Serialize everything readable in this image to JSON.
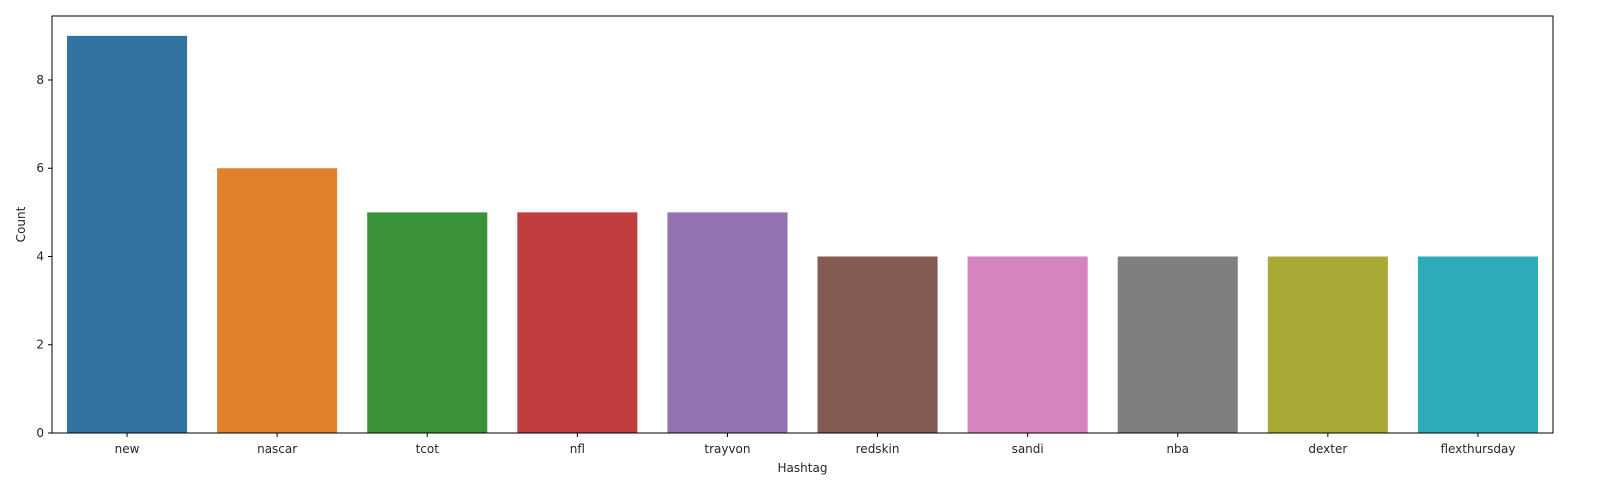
{
  "chart_data": {
    "type": "bar",
    "title": "",
    "xlabel": "Hashtag",
    "ylabel": "Count",
    "categories": [
      "new",
      "nascar",
      "tcot",
      "nfl",
      "trayvon",
      "redskin",
      "sandi",
      "nba",
      "dexter",
      "flexthursday"
    ],
    "values": [
      9,
      6,
      5,
      5,
      5,
      4,
      4,
      4,
      4,
      4
    ],
    "colors": [
      "#3274a1",
      "#e1812c",
      "#3a923a",
      "#c03d3e",
      "#9372b2",
      "#845b53",
      "#d684bd",
      "#7f7f7f",
      "#a9aa35",
      "#2eabb8"
    ],
    "ylim": [
      0,
      9.45
    ],
    "yticks": [
      0,
      2,
      4,
      6,
      8
    ],
    "grid": false,
    "legend": "none"
  }
}
